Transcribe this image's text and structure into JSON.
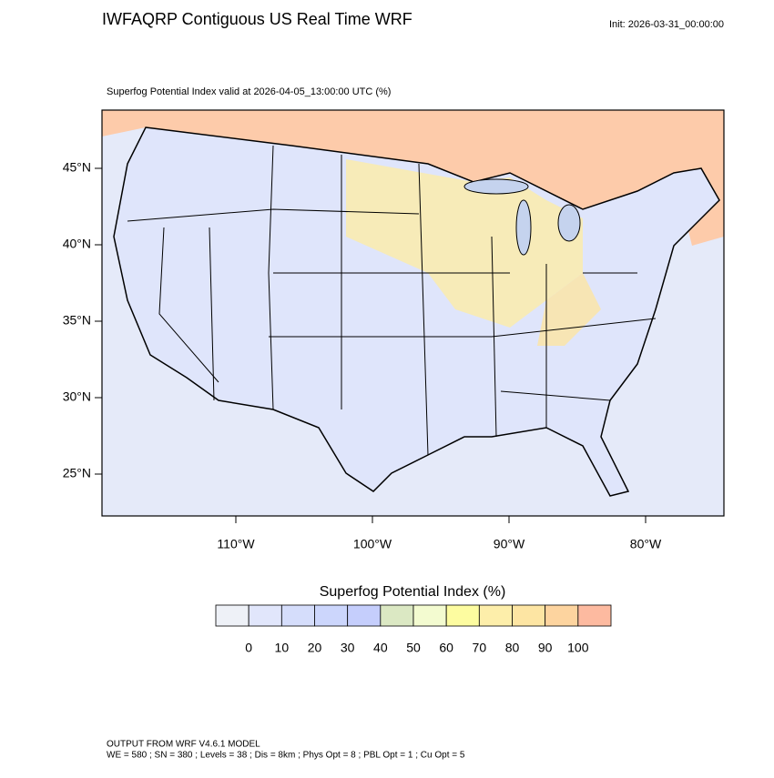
{
  "header": {
    "title": "IWFAQRP Contiguous US Real Time WRF",
    "init": "Init: 2026-03-31_00:00:00",
    "subtitle": "Superfog Potential Index valid at 2026-04-05_13:00:00 UTC   (%)"
  },
  "map": {
    "lat_labels": [
      {
        "value": 45,
        "label": "45°N"
      },
      {
        "value": 40,
        "label": "40°N"
      },
      {
        "value": 35,
        "label": "35°N"
      },
      {
        "value": 30,
        "label": "30°N"
      },
      {
        "value": 25,
        "label": "25°N"
      }
    ],
    "lon_labels": [
      {
        "value": -110,
        "label": "110°W"
      },
      {
        "value": -100,
        "label": "100°W"
      },
      {
        "value": -90,
        "label": "90°W"
      },
      {
        "value": -80,
        "label": "80°W"
      }
    ]
  },
  "colorbar": {
    "title": "Superfog Potential Index  (%)",
    "colors": [
      "#eef1f7",
      "#e1e6fb",
      "#d5ddfb",
      "#ccd6fc",
      "#c5cefc",
      "#dbe8c3",
      "#f3fbd0",
      "#fdfca0",
      "#fdeeaa",
      "#fde5a3",
      "#fdd49f",
      "#fdbaa0"
    ],
    "labels": [
      0,
      10,
      20,
      30,
      40,
      50,
      60,
      70,
      80,
      90,
      100
    ]
  },
  "footer": {
    "line1": "OUTPUT FROM WRF V4.6.1 MODEL",
    "line2": "WE = 580 ; SN = 380 ; Levels = 38 ; Dis = 8km ; Phys Opt = 8 ; PBL Opt = 1 ; Cu Opt = 5"
  }
}
